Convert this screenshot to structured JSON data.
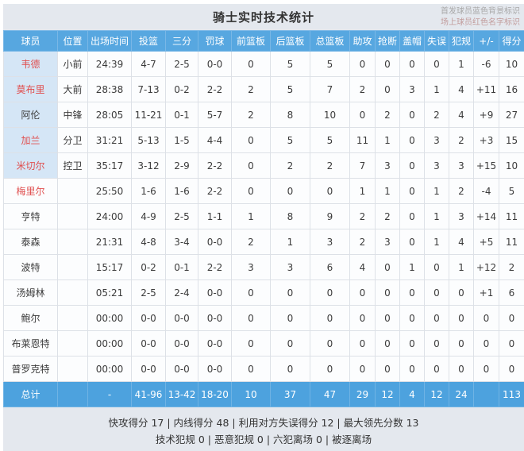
{
  "page": {
    "title": "骑士实时技术统计",
    "legend": {
      "line1": "首发球员蓝色背景标识",
      "line2": "场上球员红色名字标识"
    }
  },
  "colors": {
    "header_blue": "#57a7e0",
    "totals_blue": "#4da2de",
    "starter_cell_bg": "#d5e6f6",
    "on_court_name_red": "#e05050",
    "page_bg": "#e4e8ee"
  },
  "table": {
    "columns": [
      "球员",
      "位置",
      "出场时间",
      "投篮",
      "三分",
      "罚球",
      "前篮板",
      "后篮板",
      "总篮板",
      "助攻",
      "抢断",
      "盖帽",
      "失误",
      "犯规",
      "+/-",
      "得分"
    ],
    "rows": [
      {
        "starter": true,
        "on_court": true,
        "values": [
          "韦德",
          "小前",
          "24:39",
          "4-7",
          "2-5",
          "0-0",
          "0",
          "5",
          "5",
          "0",
          "0",
          "0",
          "0",
          "1",
          "-6",
          "10"
        ]
      },
      {
        "starter": true,
        "on_court": true,
        "values": [
          "莫布里",
          "大前",
          "28:38",
          "7-13",
          "0-2",
          "2-2",
          "2",
          "5",
          "7",
          "2",
          "0",
          "3",
          "1",
          "4",
          "+11",
          "16"
        ]
      },
      {
        "starter": true,
        "on_court": false,
        "values": [
          "阿伦",
          "中锋",
          "28:05",
          "11-21",
          "0-1",
          "5-7",
          "2",
          "8",
          "10",
          "0",
          "2",
          "0",
          "2",
          "4",
          "+9",
          "27"
        ]
      },
      {
        "starter": true,
        "on_court": true,
        "values": [
          "加兰",
          "分卫",
          "31:21",
          "5-13",
          "1-5",
          "4-4",
          "0",
          "5",
          "5",
          "11",
          "1",
          "0",
          "3",
          "2",
          "+3",
          "15"
        ]
      },
      {
        "starter": true,
        "on_court": true,
        "values": [
          "米切尔",
          "控卫",
          "35:17",
          "3-12",
          "2-9",
          "2-2",
          "0",
          "2",
          "2",
          "7",
          "3",
          "0",
          "3",
          "3",
          "+15",
          "10"
        ]
      },
      {
        "starter": false,
        "on_court": true,
        "values": [
          "梅里尔",
          "",
          "25:50",
          "1-6",
          "1-6",
          "2-2",
          "0",
          "0",
          "0",
          "1",
          "1",
          "0",
          "1",
          "2",
          "-4",
          "5"
        ]
      },
      {
        "starter": false,
        "on_court": false,
        "values": [
          "亨特",
          "",
          "24:00",
          "4-9",
          "2-5",
          "1-1",
          "1",
          "8",
          "9",
          "2",
          "2",
          "0",
          "1",
          "3",
          "+14",
          "11"
        ]
      },
      {
        "starter": false,
        "on_court": false,
        "values": [
          "泰森",
          "",
          "21:31",
          "4-8",
          "3-4",
          "0-0",
          "2",
          "1",
          "3",
          "2",
          "3",
          "0",
          "1",
          "4",
          "+5",
          "11"
        ]
      },
      {
        "starter": false,
        "on_court": false,
        "values": [
          "波特",
          "",
          "15:17",
          "0-2",
          "0-1",
          "2-2",
          "3",
          "3",
          "6",
          "4",
          "0",
          "1",
          "0",
          "1",
          "+12",
          "2"
        ]
      },
      {
        "starter": false,
        "on_court": false,
        "values": [
          "汤姆林",
          "",
          "05:21",
          "2-5",
          "2-4",
          "0-0",
          "0",
          "0",
          "0",
          "0",
          "0",
          "0",
          "0",
          "0",
          "+1",
          "6"
        ]
      },
      {
        "starter": false,
        "on_court": false,
        "values": [
          "鲍尔",
          "",
          "00:00",
          "0-0",
          "0-0",
          "0-0",
          "0",
          "0",
          "0",
          "0",
          "0",
          "0",
          "0",
          "0",
          "0",
          "0"
        ]
      },
      {
        "starter": false,
        "on_court": false,
        "values": [
          "布莱恩特",
          "",
          "00:00",
          "0-0",
          "0-0",
          "0-0",
          "0",
          "0",
          "0",
          "0",
          "0",
          "0",
          "0",
          "0",
          "0",
          "0"
        ]
      },
      {
        "starter": false,
        "on_court": false,
        "values": [
          "普罗克特",
          "",
          "00:00",
          "0-0",
          "0-0",
          "0-0",
          "0",
          "0",
          "0",
          "0",
          "0",
          "0",
          "0",
          "0",
          "0",
          "0"
        ]
      }
    ],
    "totals": {
      "values": [
        "总计",
        "",
        "-",
        "41-96",
        "13-42",
        "18-20",
        "10",
        "37",
        "47",
        "29",
        "12",
        "4",
        "12",
        "24",
        "",
        "113"
      ]
    }
  },
  "footer": {
    "line1": "快攻得分 17 | 内线得分 48 | 利用对方失误得分 12 | 最大领先分数 13",
    "line2": "技术犯规 0 | 恶意犯规 0 | 六犯离场 0 | 被逐离场"
  }
}
